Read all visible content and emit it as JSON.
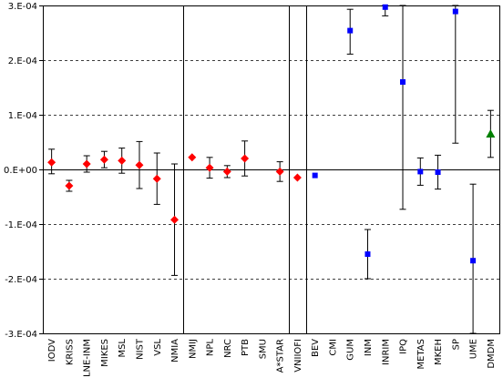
{
  "chart_data": {
    "type": "scatter",
    "ylim": [
      -0.0003,
      0.0003
    ],
    "y_ticks": [
      {
        "value": 0.0003,
        "label": "3.E-04"
      },
      {
        "value": 0.0002,
        "label": "2.E-04"
      },
      {
        "value": 0.0001,
        "label": "1.E-04"
      },
      {
        "value": 0.0,
        "label": "0.E+00"
      },
      {
        "value": -0.0001,
        "label": "-1.E-04"
      },
      {
        "value": -0.0002,
        "label": "-2.E-04"
      },
      {
        "value": -0.0003,
        "label": "-3.E-04"
      }
    ],
    "grid": "horizontal dashed at major y ticks",
    "categories": [
      "IODV",
      "KRISS",
      "LNE-INM",
      "MIKES",
      "MSL",
      "NIST",
      "VSL",
      "NMIA",
      "NMIJ",
      "NPL",
      "NRC",
      "PTB",
      "SMU",
      "A*STAR",
      "VNIIOFI",
      "BEV",
      "CMI",
      "GUM",
      "INM",
      "INRIM",
      "IPQ",
      "METAS",
      "MKEH",
      "SP",
      "UME",
      "DMDM"
    ],
    "dividers_after": [
      "NMIA",
      "A*STAR",
      "VNIIOFI"
    ],
    "series": [
      {
        "marker": "diamond",
        "color": "#ff0000",
        "points": [
          {
            "category": "IODV",
            "y": 1.3e-05,
            "err_low": -8e-06,
            "err_high": 3.7e-05
          },
          {
            "category": "KRISS",
            "y": -3e-05,
            "err_low": -4e-05,
            "err_high": -2e-05
          },
          {
            "category": "LNE-INM",
            "y": 1e-05,
            "err_low": -5e-06,
            "err_high": 2.5e-05
          },
          {
            "category": "MIKES",
            "y": 1.8e-05,
            "err_low": 3e-06,
            "err_high": 3.3e-05
          },
          {
            "category": "MSL",
            "y": 1.6e-05,
            "err_low": -7e-06,
            "err_high": 3.9e-05
          },
          {
            "category": "NIST",
            "y": 8e-06,
            "err_low": -3.5e-05,
            "err_high": 5.1e-05
          },
          {
            "category": "VSL",
            "y": -1.7e-05,
            "err_low": -6.4e-05,
            "err_high": 3e-05
          },
          {
            "category": "NMIA",
            "y": -9.2e-05,
            "err_low": -0.000194,
            "err_high": 1e-05
          },
          {
            "category": "NMIJ",
            "y": 2.2e-05
          },
          {
            "category": "NPL",
            "y": 3e-06,
            "err_low": -1.6e-05,
            "err_high": 2.2e-05
          },
          {
            "category": "NRC",
            "y": -4e-06,
            "err_low": -1.5e-05,
            "err_high": 7e-06
          },
          {
            "category": "PTB",
            "y": 2e-05,
            "err_low": -1.2e-05,
            "err_high": 5.2e-05
          },
          {
            "category": "A*STAR",
            "y": -4e-06,
            "err_low": -2.2e-05,
            "err_high": 1.4e-05
          },
          {
            "category": "VNIIOFI",
            "y": -1.5e-05
          }
        ]
      },
      {
        "marker": "square",
        "color": "#0000ff",
        "points": [
          {
            "category": "BEV",
            "y": -1.1e-05
          },
          {
            "category": "GUM",
            "y": 0.000254,
            "err_low": 0.000211,
            "err_high": 0.000293
          },
          {
            "category": "INM",
            "y": -0.000155,
            "err_low": -0.0002,
            "err_high": -0.00011
          },
          {
            "category": "INRIM",
            "y": 0.000297,
            "err_low": 0.000281,
            "err_high": 0.0003
          },
          {
            "category": "IPQ",
            "y": 0.00016,
            "err_low": -7.3e-05,
            "err_high": 0.0003
          },
          {
            "category": "METAS",
            "y": -4e-06,
            "err_low": -2.9e-05,
            "err_high": 2.1e-05
          },
          {
            "category": "MKEH",
            "y": -5e-06,
            "err_low": -3.6e-05,
            "err_high": 2.6e-05
          },
          {
            "category": "SP",
            "y": 0.000289,
            "err_low": 4.8e-05,
            "err_high": 0.0003
          },
          {
            "category": "UME",
            "y": -0.000167,
            "err_low": -0.0003,
            "err_high": -2.7e-05
          }
        ]
      },
      {
        "marker": "triangle",
        "color": "#008000",
        "points": [
          {
            "category": "DMDM",
            "y": 6.5e-05,
            "err_low": 2.2e-05,
            "err_high": 0.000108
          }
        ]
      }
    ]
  }
}
